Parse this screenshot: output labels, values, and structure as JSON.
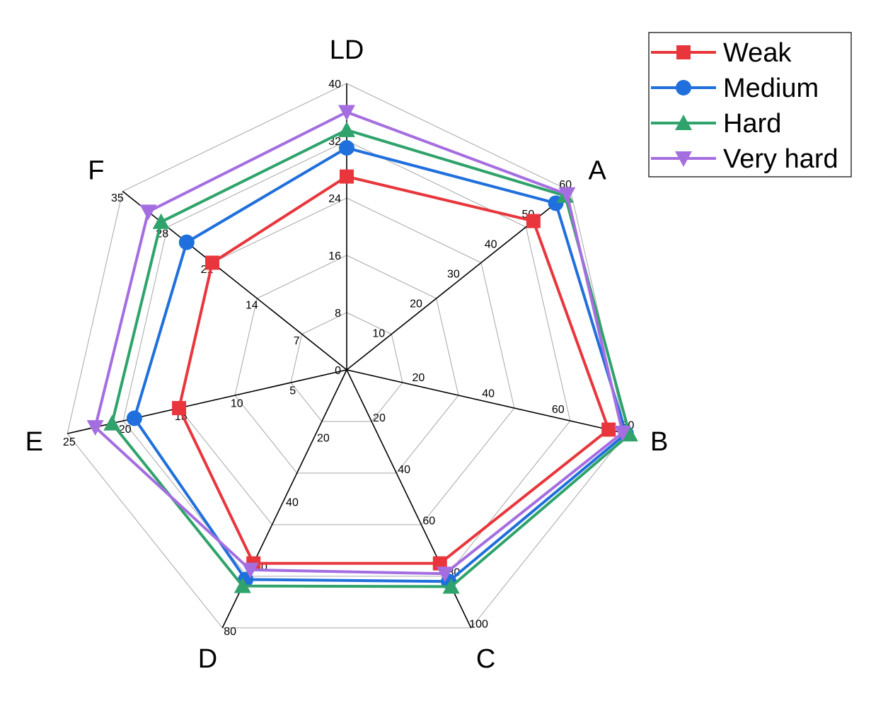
{
  "chart_data": {
    "type": "radar",
    "title": "",
    "axes": [
      {
        "name": "LD",
        "max": 40,
        "ticks": [
          0,
          8,
          16,
          24,
          32,
          40
        ]
      },
      {
        "name": "A",
        "max": 60,
        "ticks": [
          10,
          20,
          30,
          40,
          50,
          60
        ]
      },
      {
        "name": "B",
        "max": 80,
        "ticks": [
          20,
          40,
          60,
          80
        ]
      },
      {
        "name": "C",
        "max": 100,
        "ticks": [
          20,
          40,
          60,
          80,
          100
        ]
      },
      {
        "name": "D",
        "max": 80,
        "ticks": [
          20,
          40,
          60,
          80
        ]
      },
      {
        "name": "E",
        "max": 25,
        "ticks": [
          5,
          10,
          15,
          20,
          25
        ]
      },
      {
        "name": "F",
        "max": 35,
        "ticks": [
          7,
          14,
          21,
          28,
          35
        ]
      }
    ],
    "series": [
      {
        "name": "Weak",
        "color": "#e8363c",
        "marker": "square",
        "values": [
          27,
          50,
          75,
          75,
          60,
          15,
          21
        ]
      },
      {
        "name": "Medium",
        "color": "#1f6fdc",
        "marker": "circle",
        "values": [
          31,
          56,
          80,
          82,
          65,
          19,
          25
        ]
      },
      {
        "name": "Hard",
        "color": "#2fa36b",
        "marker": "triangle-up",
        "values": [
          33.5,
          58.5,
          81,
          84,
          67,
          21,
          29
        ]
      },
      {
        "name": "Very hard",
        "color": "#a56ee0",
        "marker": "triangle-down",
        "values": [
          36,
          59,
          79,
          79,
          62,
          22.5,
          31
        ]
      }
    ],
    "legend_position": "top-right"
  }
}
